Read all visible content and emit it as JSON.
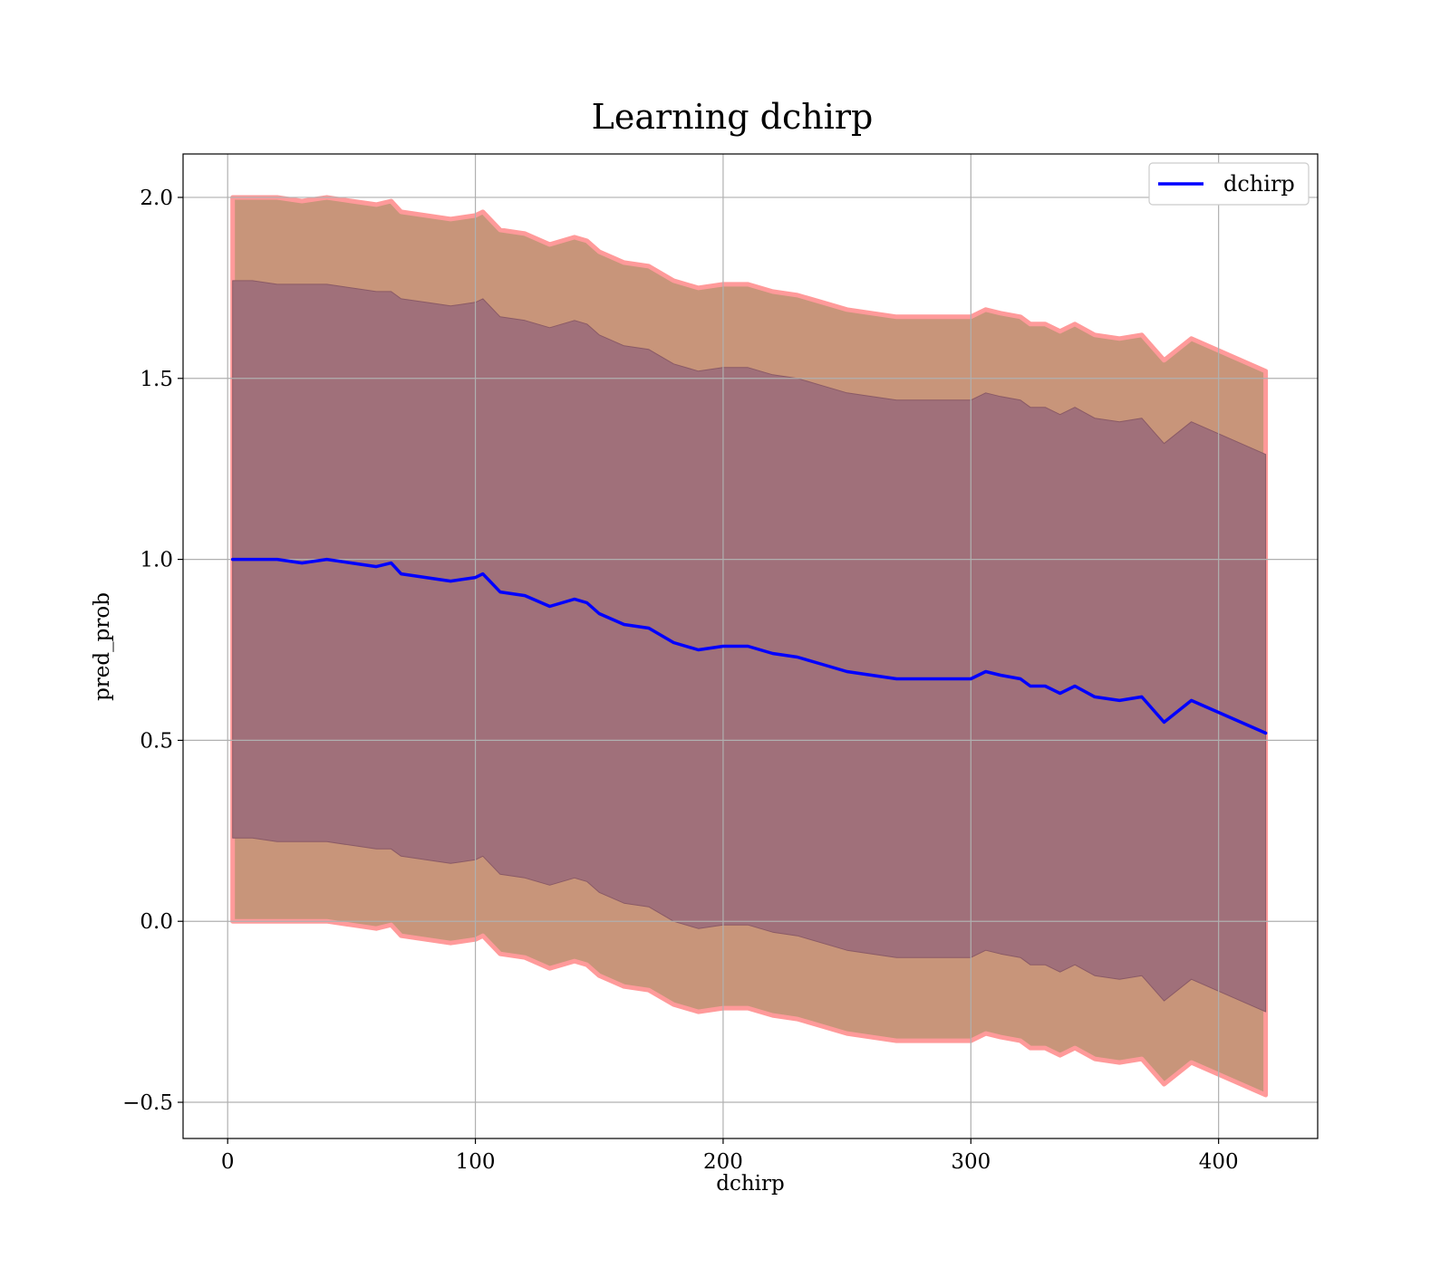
{
  "chart_data": {
    "type": "line",
    "title": "Learning dchirp",
    "xlabel": "dchirp",
    "ylabel": "pred_prob",
    "xlim": [
      -18,
      440
    ],
    "ylim": [
      -0.6,
      2.12
    ],
    "xticks": [
      0,
      100,
      200,
      300,
      400
    ],
    "xtick_labels": [
      "0",
      "100",
      "200",
      "300",
      "400"
    ],
    "yticks": [
      -0.5,
      0.0,
      0.5,
      1.0,
      1.5,
      2.0
    ],
    "ytick_labels": [
      "−0.5",
      "0.0",
      "0.5",
      "1.0",
      "1.5",
      "2.0"
    ],
    "grid": true,
    "legend": {
      "position": "top-right",
      "entries": [
        "dchirp"
      ]
    },
    "colors": {
      "line": "#0000ff",
      "outer_band": "#c8957a",
      "inner_band": "#a0707a",
      "band_edge": "#ff9a9a",
      "grid": "#b0b0b0"
    },
    "series": [
      {
        "name": "dchirp",
        "x": [
          2,
          10,
          20,
          30,
          40,
          50,
          60,
          66,
          70,
          80,
          90,
          100,
          103,
          110,
          120,
          130,
          140,
          145,
          150,
          160,
          170,
          180,
          190,
          200,
          210,
          220,
          230,
          240,
          250,
          260,
          270,
          280,
          290,
          300,
          306,
          312,
          320,
          324,
          330,
          336,
          342,
          350,
          360,
          369,
          378,
          389,
          419
        ],
        "y": [
          1.0,
          1.0,
          1.0,
          0.99,
          1.0,
          0.99,
          0.98,
          0.99,
          0.96,
          0.95,
          0.94,
          0.95,
          0.96,
          0.91,
          0.9,
          0.87,
          0.89,
          0.88,
          0.85,
          0.82,
          0.81,
          0.77,
          0.75,
          0.76,
          0.76,
          0.74,
          0.73,
          0.71,
          0.69,
          0.68,
          0.67,
          0.67,
          0.67,
          0.67,
          0.69,
          0.68,
          0.67,
          0.65,
          0.65,
          0.63,
          0.65,
          0.62,
          0.61,
          0.62,
          0.55,
          0.61,
          0.52
        ]
      }
    ],
    "bands": [
      {
        "x": [
          2,
          10,
          20,
          30,
          40,
          50,
          60,
          66,
          70,
          80,
          90,
          100,
          103,
          110,
          120,
          130,
          140,
          145,
          150,
          160,
          170,
          180,
          190,
          200,
          210,
          220,
          230,
          240,
          250,
          260,
          270,
          280,
          290,
          300,
          306,
          312,
          320,
          324,
          330,
          336,
          342,
          350,
          360,
          369,
          378,
          389,
          419
        ],
        "lower": [
          0.0,
          0.0,
          0.0,
          0.0,
          0.0,
          -0.01,
          -0.02,
          -0.01,
          -0.04,
          -0.05,
          -0.06,
          -0.05,
          -0.04,
          -0.09,
          -0.1,
          -0.13,
          -0.11,
          -0.12,
          -0.15,
          -0.18,
          -0.19,
          -0.23,
          -0.25,
          -0.24,
          -0.24,
          -0.26,
          -0.27,
          -0.29,
          -0.31,
          -0.32,
          -0.33,
          -0.33,
          -0.33,
          -0.33,
          -0.31,
          -0.32,
          -0.33,
          -0.35,
          -0.35,
          -0.37,
          -0.35,
          -0.38,
          -0.39,
          -0.38,
          -0.45,
          -0.39,
          -0.48
        ],
        "upper": [
          2.0,
          2.0,
          2.0,
          1.99,
          2.0,
          1.99,
          1.98,
          1.99,
          1.96,
          1.95,
          1.94,
          1.95,
          1.96,
          1.91,
          1.9,
          1.87,
          1.89,
          1.88,
          1.85,
          1.82,
          1.81,
          1.77,
          1.75,
          1.76,
          1.76,
          1.74,
          1.73,
          1.71,
          1.69,
          1.68,
          1.67,
          1.67,
          1.67,
          1.67,
          1.69,
          1.68,
          1.67,
          1.65,
          1.65,
          1.63,
          1.65,
          1.62,
          1.61,
          1.62,
          1.55,
          1.61,
          1.52
        ]
      },
      {
        "x": [
          2,
          10,
          20,
          30,
          40,
          50,
          60,
          66,
          70,
          80,
          90,
          100,
          103,
          110,
          120,
          130,
          140,
          145,
          150,
          160,
          170,
          180,
          190,
          200,
          210,
          220,
          230,
          240,
          250,
          260,
          270,
          280,
          290,
          300,
          306,
          312,
          320,
          324,
          330,
          336,
          342,
          350,
          360,
          369,
          378,
          389,
          419
        ],
        "lower": [
          0.23,
          0.23,
          0.22,
          0.22,
          0.22,
          0.21,
          0.2,
          0.2,
          0.18,
          0.17,
          0.16,
          0.17,
          0.18,
          0.13,
          0.12,
          0.1,
          0.12,
          0.11,
          0.08,
          0.05,
          0.04,
          0.0,
          -0.02,
          -0.01,
          -0.01,
          -0.03,
          -0.04,
          -0.06,
          -0.08,
          -0.09,
          -0.1,
          -0.1,
          -0.1,
          -0.1,
          -0.08,
          -0.09,
          -0.1,
          -0.12,
          -0.12,
          -0.14,
          -0.12,
          -0.15,
          -0.16,
          -0.15,
          -0.22,
          -0.16,
          -0.25
        ],
        "upper": [
          1.77,
          1.77,
          1.76,
          1.76,
          1.76,
          1.75,
          1.74,
          1.74,
          1.72,
          1.71,
          1.7,
          1.71,
          1.72,
          1.67,
          1.66,
          1.64,
          1.66,
          1.65,
          1.62,
          1.59,
          1.58,
          1.54,
          1.52,
          1.53,
          1.53,
          1.51,
          1.5,
          1.48,
          1.46,
          1.45,
          1.44,
          1.44,
          1.44,
          1.44,
          1.46,
          1.45,
          1.44,
          1.42,
          1.42,
          1.4,
          1.42,
          1.39,
          1.38,
          1.39,
          1.32,
          1.38,
          1.29
        ]
      }
    ]
  }
}
